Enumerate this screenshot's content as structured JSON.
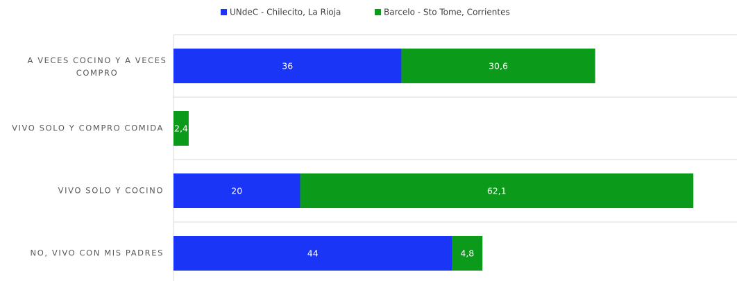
{
  "chart_data": {
    "type": "stacked-bar-horizontal",
    "categories": [
      "A VECES COCINO Y A VECES COMPRO",
      "VIVO SOLO Y COMPRO COMIDA",
      "VIVO SOLO Y COCINO",
      "NO, VIVO CON MIS PADRES"
    ],
    "series": [
      {
        "name": "UNdeC - Chilecito, La Rioja",
        "color": "#1a35f5",
        "values": [
          36,
          0,
          20,
          44
        ]
      },
      {
        "name": "Barcelo - Sto Tome, Corrientes",
        "color": "#0c9a1a",
        "values": [
          30.6,
          2.4,
          62.1,
          4.8
        ],
        "value_labels": [
          "30,6",
          "2,4",
          "62,1",
          "4,8"
        ]
      }
    ],
    "xlim": [
      0,
      89
    ],
    "grid": true,
    "legend": "top"
  }
}
